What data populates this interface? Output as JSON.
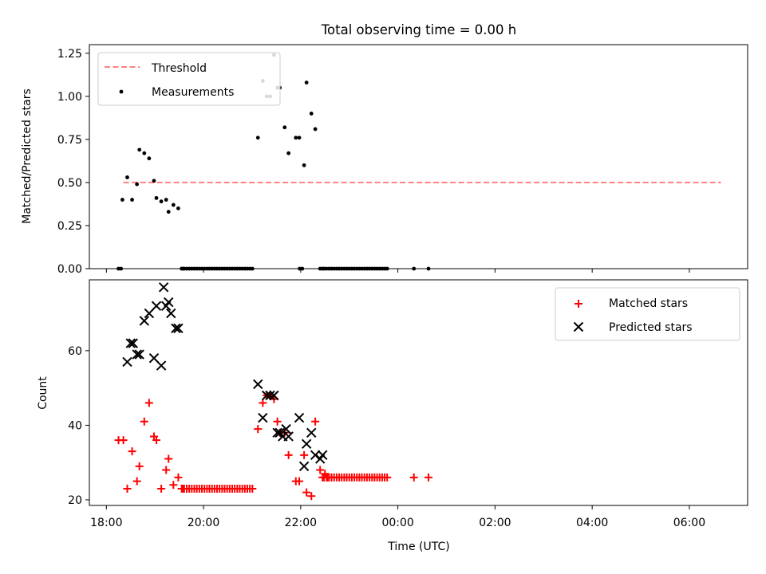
{
  "title": "Total observing time = 0.00 h",
  "chart_data": [
    {
      "type": "scatter",
      "panel": "top",
      "xlabel": "",
      "ylabel": "Matched/Predicted stars",
      "xlim": [
        -0.35,
        13.2
      ],
      "ylim": [
        0,
        1.3
      ],
      "yticks": [
        0,
        0.25,
        0.5,
        0.75,
        1.0,
        1.25
      ],
      "ytick_labels": [
        "0.00",
        "0.25",
        "0.50",
        "0.75",
        "1.00",
        "1.25"
      ],
      "grid": false,
      "legend_position": "top-left",
      "threshold": {
        "name": "Threshold",
        "y": 0.5,
        "x_range": [
          0.35,
          12.65
        ],
        "color": "#ff8080"
      },
      "series": [
        {
          "name": "Measurements",
          "color": "#000000",
          "x": [
            0.33,
            0.43,
            0.53,
            0.63,
            0.68,
            0.78,
            0.88,
            0.98,
            1.03,
            1.13,
            1.23,
            1.28,
            1.38,
            1.48,
            1.58,
            3.12,
            3.22,
            3.3,
            3.37,
            3.45,
            3.52,
            3.57,
            3.67,
            3.75,
            3.9,
            3.97,
            4.07,
            4.12,
            4.22,
            4.3,
            4.4,
            4.45
          ],
          "y": [
            0.4,
            0.53,
            0.4,
            0.49,
            0.69,
            0.67,
            0.64,
            0.51,
            0.41,
            0.39,
            0.4,
            0.33,
            0.37,
            0.35,
            0.0,
            0.76,
            1.09,
            1.0,
            1.0,
            1.24,
            1.05,
            1.05,
            0.82,
            0.67,
            0.76,
            0.76,
            0.6,
            1.08,
            0.9,
            0.81,
            0.0,
            0.0
          ],
          "zeros_x_ranges": [
            [
              0.25,
              0.35
            ],
            [
              1.55,
              3.03
            ],
            [
              3.98,
              4.07
            ],
            [
              4.48,
              5.78
            ]
          ],
          "zeros_extra_x": [
            6.33,
            6.63
          ]
        }
      ]
    },
    {
      "type": "scatter",
      "panel": "bottom",
      "xlabel": "Time (UTC)",
      "ylabel": "Count",
      "xlim": [
        -0.35,
        13.2
      ],
      "ylim": [
        18.5,
        79
      ],
      "yticks": [
        20,
        40,
        60
      ],
      "ytick_labels": [
        "20",
        "40",
        "60"
      ],
      "xticks": [
        0,
        2,
        4,
        6,
        8,
        10,
        12
      ],
      "xtick_labels": [
        "18:00",
        "20:00",
        "22:00",
        "00:00",
        "02:00",
        "04:00",
        "06:00"
      ],
      "grid": false,
      "legend_position": "top-right",
      "series": [
        {
          "name": "Matched stars",
          "color": "#ff0000",
          "marker": "plus",
          "x": [
            0.25,
            0.35,
            0.43,
            0.53,
            0.63,
            0.68,
            0.78,
            0.88,
            0.98,
            1.03,
            1.13,
            1.23,
            1.28,
            1.38,
            1.48,
            1.58,
            3.12,
            3.22,
            3.3,
            3.37,
            3.45,
            3.52,
            3.57,
            3.67,
            3.75,
            3.9,
            3.97,
            4.07,
            4.12,
            4.22,
            4.3,
            4.4,
            4.45,
            4.5,
            4.55
          ],
          "y": [
            36,
            36,
            23,
            33,
            25,
            29,
            41,
            46,
            37,
            36,
            23,
            28,
            31,
            24,
            26,
            23,
            39,
            46,
            48,
            48,
            47,
            41,
            38,
            38,
            32,
            25,
            25,
            32,
            22,
            21,
            41,
            28,
            26,
            27,
            26
          ],
          "baseline_ranges": [
            {
              "x": [
                1.55,
                3.03
              ],
              "y": 23
            },
            {
              "x": [
                4.48,
                5.78
              ],
              "y": 26
            }
          ],
          "baseline_extra": [
            {
              "x": 6.33,
              "y": 26
            },
            {
              "x": 6.63,
              "y": 26
            }
          ]
        },
        {
          "name": "Predicted stars",
          "color": "#000000",
          "marker": "x",
          "x": [
            0.43,
            0.5,
            0.55,
            0.63,
            0.68,
            0.78,
            0.88,
            0.98,
            1.03,
            1.13,
            1.18,
            1.23,
            1.28,
            1.33,
            1.43,
            1.48,
            3.12,
            3.22,
            3.3,
            3.37,
            3.45,
            3.52,
            3.57,
            3.63,
            3.7,
            3.75,
            3.97,
            4.07,
            4.12,
            4.22,
            4.3,
            4.4,
            4.45
          ],
          "y": [
            57,
            62,
            62,
            59,
            59,
            68,
            70,
            58,
            72,
            56,
            77,
            72,
            73,
            70,
            66,
            66,
            51,
            42,
            48,
            48,
            48,
            38,
            38,
            37,
            39,
            37,
            42,
            29,
            35,
            38,
            32,
            31,
            32
          ]
        }
      ]
    }
  ]
}
